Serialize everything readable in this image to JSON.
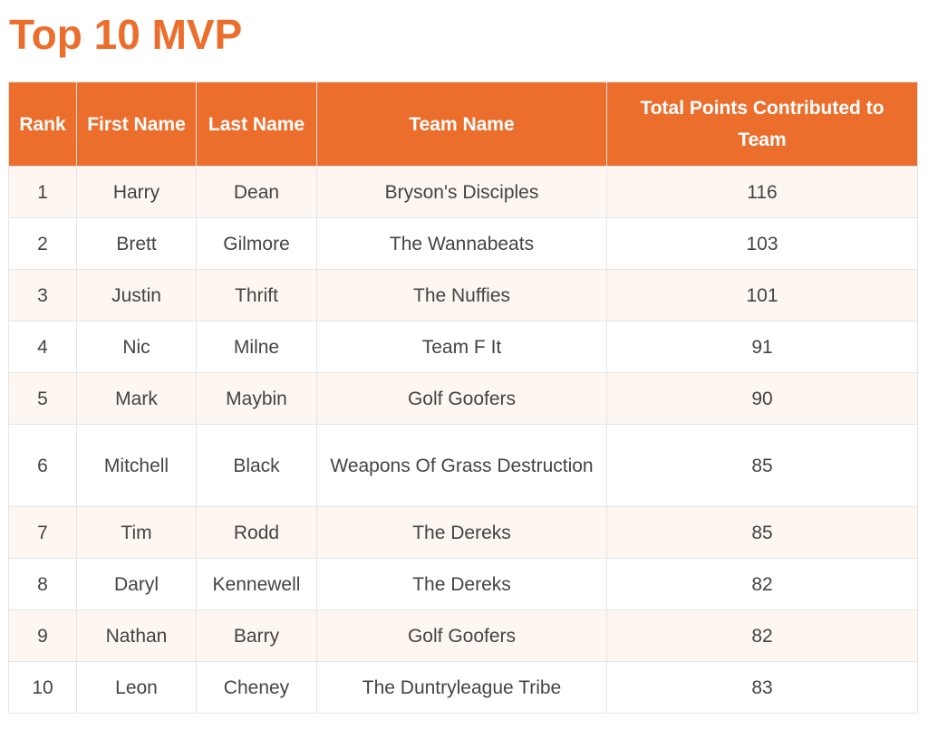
{
  "page": {
    "title": "Top 10 MVP"
  },
  "colors": {
    "accent": "#ec6e2d",
    "row_stripe": "#fdf6f1",
    "text": "#444444"
  },
  "table": {
    "headers": [
      "Rank",
      "First Name",
      "Last Name",
      "Team Name",
      "Total Points Contributed to Team"
    ],
    "rows": [
      {
        "rank": "1",
        "first": "Harry",
        "last": "Dean",
        "team": "Bryson's Disciples",
        "points": "116"
      },
      {
        "rank": "2",
        "first": "Brett",
        "last": "Gilmore",
        "team": "The Wannabeats",
        "points": "103"
      },
      {
        "rank": "3",
        "first": "Justin",
        "last": "Thrift",
        "team": "The Nuffies",
        "points": "101"
      },
      {
        "rank": "4",
        "first": "Nic",
        "last": "Milne",
        "team": "Team F It",
        "points": "91"
      },
      {
        "rank": "5",
        "first": "Mark",
        "last": "Maybin",
        "team": "Golf Goofers",
        "points": "90"
      },
      {
        "rank": "6",
        "first": "Mitchell",
        "last": "Black",
        "team": "Weapons Of Grass Destruction",
        "points": "85"
      },
      {
        "rank": "7",
        "first": "Tim",
        "last": "Rodd",
        "team": "The Dereks",
        "points": "85"
      },
      {
        "rank": "8",
        "first": "Daryl",
        "last": "Kennewell",
        "team": "The Dereks",
        "points": "82"
      },
      {
        "rank": "9",
        "first": "Nathan",
        "last": "Barry",
        "team": "Golf Goofers",
        "points": "82"
      },
      {
        "rank": "10",
        "first": "Leon",
        "last": "Cheney",
        "team": "The Duntryleague Tribe",
        "points": "83"
      }
    ]
  }
}
